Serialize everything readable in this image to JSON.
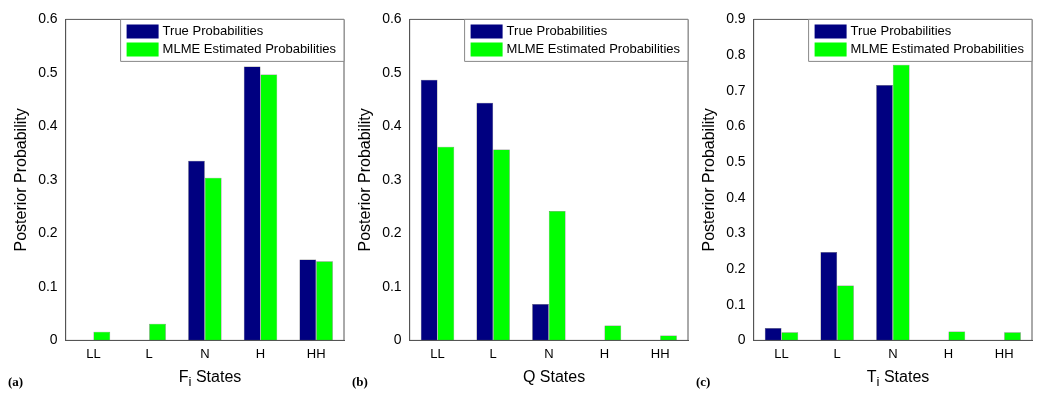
{
  "chart_data": [
    {
      "type": "bar",
      "ylabel": "Posterior Probability",
      "xlabel": "F$_{i}$ States",
      "annotations": [
        "(a)"
      ],
      "categories": [
        "LL",
        "L",
        "N",
        "H",
        "HH"
      ],
      "series": [
        {
          "name": "True Probabilities",
          "color": "#000080",
          "values": [
            0,
            0,
            0.336,
            0.512,
            0.151
          ]
        },
        {
          "name": "MLME Estimated Probabilities",
          "color": "#00ff00",
          "values": [
            0.016,
            0.031,
            0.304,
            0.497,
            0.148
          ]
        }
      ],
      "ylim": [
        0,
        0.6
      ],
      "yticks": [
        0,
        0.1,
        0.2,
        0.3,
        0.4,
        0.5,
        0.6
      ],
      "grid": false,
      "legend": "top right"
    },
    {
      "type": "bar",
      "ylabel": "Posterior Probability",
      "xlabel": "Q States",
      "annotations": [
        "(b)"
      ],
      "categories": [
        "LL",
        "L",
        "N",
        "H",
        "HH"
      ],
      "series": [
        {
          "name": "True Probabilities",
          "color": "#000080",
          "values": [
            0.487,
            0.444,
            0.068,
            0,
            0
          ]
        },
        {
          "name": "MLME Estimated Probabilities",
          "color": "#00ff00",
          "values": [
            0.362,
            0.357,
            0.242,
            0.028,
            0.009
          ]
        }
      ],
      "ylim": [
        0,
        0.6
      ],
      "yticks": [
        0,
        0.1,
        0.2,
        0.3,
        0.4,
        0.5,
        0.6
      ],
      "grid": false,
      "legend": "top right"
    },
    {
      "type": "bar",
      "ylabel": "Posterior Probability",
      "xlabel": "T$_{i}$ States",
      "annotations": [
        "(c)"
      ],
      "categories": [
        "LL",
        "L",
        "N",
        "H",
        "HH"
      ],
      "series": [
        {
          "name": "True Probabilities",
          "color": "#000080",
          "values": [
            0.035,
            0.248,
            0.716,
            0,
            0
          ]
        },
        {
          "name": "MLME Estimated Probabilities",
          "color": "#00ff00",
          "values": [
            0.023,
            0.154,
            0.773,
            0.025,
            0.023
          ]
        }
      ],
      "ylim": [
        0,
        0.9
      ],
      "yticks": [
        0,
        0.1,
        0.2,
        0.3,
        0.4,
        0.5,
        0.6,
        0.7,
        0.8,
        0.9
      ],
      "grid": false,
      "legend": "top right"
    }
  ]
}
